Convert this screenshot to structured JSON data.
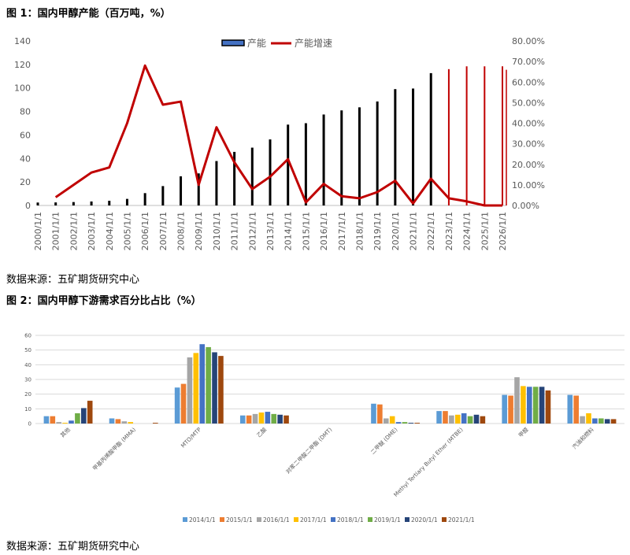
{
  "figure1": {
    "title": "图 1：国内甲醇产能（百万吨，%）",
    "source": "数据来源：五矿期货研究中心",
    "colors": {
      "capacity": "#000000",
      "growth": "#c00000"
    },
    "chart_data": {
      "type": "bar",
      "categories": [
        "2000/1/1",
        "2001/1/1",
        "2002/1/1",
        "2003/1/1",
        "2004/1/1",
        "2005/1/1",
        "2006/1/1",
        "2007/1/1",
        "2008/1/1",
        "2009/1/1",
        "2010/1/1",
        "2011/1/1",
        "2012/1/1",
        "2013/1/1",
        "2014/1/1",
        "2015/1/1",
        "2016/1/1",
        "2017/1/1",
        "2018/1/1",
        "2019/1/1",
        "2020/1/1",
        "2021/1/1",
        "2022/1/1",
        "2023/1/1",
        "2024/1/1",
        "2025/1/1",
        "2026/1/1"
      ],
      "series": [
        {
          "name": "产能",
          "axis": "left",
          "type": "bar",
          "values": [
            2.5,
            2.6,
            2.9,
            3.4,
            4.0,
            5.6,
            10.5,
            16.5,
            24.8,
            27.3,
            37.8,
            45.6,
            49.2,
            56.2,
            68.8,
            70.0,
            77.4,
            80.9,
            83.5,
            88.5,
            99.0,
            99.5,
            112.6,
            116.0,
            118.4,
            118.4,
            118.4
          ]
        },
        {
          "name": "产能增速",
          "axis": "right",
          "type": "line",
          "values": [
            null,
            4.0,
            10.0,
            16.0,
            18.5,
            40.0,
            68.0,
            49.0,
            50.5,
            10.0,
            38.0,
            21.0,
            8.0,
            14.0,
            22.5,
            1.5,
            10.5,
            4.5,
            3.5,
            6.5,
            12.0,
            1.0,
            13.0,
            3.5,
            2.0,
            0.0,
            0.0
          ]
        }
      ],
      "ylim": [
        0,
        140
      ],
      "y_ticks": [
        "0",
        "20",
        "40",
        "60",
        "80",
        "100",
        "120",
        "140"
      ],
      "y2lim": [
        0,
        80
      ],
      "y2_ticks": [
        "0.00%",
        "10.00%",
        "20.00%",
        "30.00%",
        "40.00%",
        "50.00%",
        "60.00%",
        "70.00%",
        "80.00%"
      ],
      "legend": [
        "产能",
        "产能增速"
      ],
      "legend_position": "top-center",
      "grid": false
    }
  },
  "figure2": {
    "title": "图 2：国内甲醇下游需求百分比占比（%）",
    "source": "数据来源：五矿期货研究中心",
    "chart_data": {
      "type": "bar",
      "categories": [
        "其他",
        "甲基丙烯酸甲酯 (MMA)",
        "MTO/MTP",
        "乙酸",
        "对苯二甲酸二甲酯 (DMT)",
        "二甲醚 (DME)",
        "Methyl Tertiary Butyl Ether (MTBE)",
        "甲醛",
        "汽油和燃料"
      ],
      "series": [
        {
          "name": "2014/1/1",
          "color": "#5b9bd5",
          "values": [
            5,
            3.5,
            24.5,
            5.5,
            0,
            13.5,
            8.5,
            19.5,
            19.5
          ]
        },
        {
          "name": "2015/1/1",
          "color": "#ed7d31",
          "values": [
            5,
            3,
            27,
            5.5,
            0,
            13,
            8.5,
            19,
            19
          ]
        },
        {
          "name": "2016/1/1",
          "color": "#a5a5a5",
          "values": [
            1,
            1.5,
            45,
            6.5,
            0,
            3.5,
            5.5,
            31.5,
            5
          ]
        },
        {
          "name": "2017/1/1",
          "color": "#ffc000",
          "values": [
            0.5,
            1,
            48,
            7.5,
            0,
            5,
            6,
            25.5,
            7
          ]
        },
        {
          "name": "2018/1/1",
          "color": "#4472c4",
          "values": [
            2,
            0,
            54,
            8,
            0,
            1,
            7,
            25,
            3.5
          ]
        },
        {
          "name": "2019/1/1",
          "color": "#70ad47",
          "values": [
            7,
            0,
            52,
            6.5,
            0,
            1,
            5,
            25,
            3.5
          ]
        },
        {
          "name": "2020/1/1",
          "color": "#264478",
          "values": [
            10.5,
            0,
            48.5,
            6,
            0,
            0.5,
            6,
            25,
            3
          ]
        },
        {
          "name": "2021/1/1",
          "color": "#9e480e",
          "values": [
            15.5,
            0.5,
            46,
            5.5,
            0,
            0.5,
            5,
            22.5,
            3
          ]
        }
      ],
      "ylim": [
        0,
        60
      ],
      "y_ticks": [
        "0",
        "10",
        "20",
        "30",
        "40",
        "50",
        "60"
      ],
      "legend_position": "bottom-center",
      "grid": true
    }
  }
}
